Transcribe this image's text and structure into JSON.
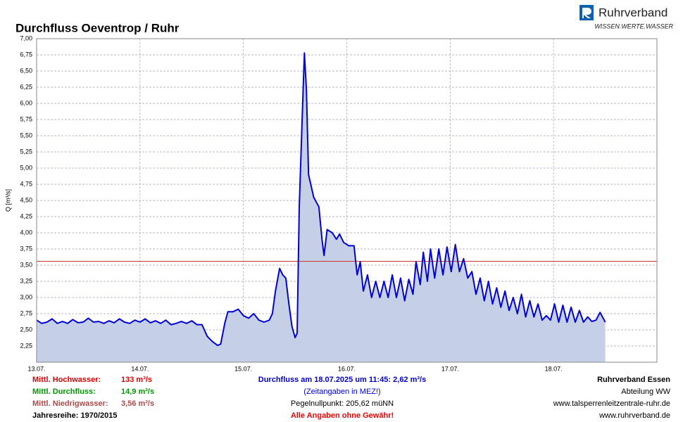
{
  "logo": {
    "name": "Ruhrverband",
    "slogan": "WISSEN.WERTE.WASSER"
  },
  "chart_data": {
    "type": "line",
    "title": "Durchfluss Oeventrop / Ruhr",
    "y_label": "Q [m³/s]",
    "color": "#0000dd",
    "fill_color": "#c5d0e6",
    "grid": true,
    "reference_line": {
      "value": 3.56,
      "color": "#cc3333"
    },
    "xlim": [
      0,
      6
    ],
    "xticks": [
      {
        "value": 0,
        "label": "13.07."
      },
      {
        "value": 1,
        "label": "14.07."
      },
      {
        "value": 2,
        "label": "15.07."
      },
      {
        "value": 3,
        "label": "16.07."
      },
      {
        "value": 4,
        "label": "17.07."
      },
      {
        "value": 5,
        "label": "18.07."
      }
    ],
    "ylim": [
      2,
      7
    ],
    "yticks": [
      {
        "value": 2.25,
        "label": "2,25"
      },
      {
        "value": 2.5,
        "label": "2,50"
      },
      {
        "value": 2.75,
        "label": "2,75"
      },
      {
        "value": 3,
        "label": "3,00"
      },
      {
        "value": 3.25,
        "label": "3,25"
      },
      {
        "value": 3.5,
        "label": "3,50"
      },
      {
        "value": 3.75,
        "label": "3,75"
      },
      {
        "value": 4,
        "label": "4,00"
      },
      {
        "value": 4.25,
        "label": "4,25"
      },
      {
        "value": 4.5,
        "label": "4,50"
      },
      {
        "value": 4.75,
        "label": "4,75"
      },
      {
        "value": 5,
        "label": "5,00"
      },
      {
        "value": 5.25,
        "label": "5,25"
      },
      {
        "value": 5.5,
        "label": "5,50"
      },
      {
        "value": 5.75,
        "label": "5,75"
      },
      {
        "value": 6,
        "label": "6,00"
      },
      {
        "value": 6.25,
        "label": "6,25"
      },
      {
        "value": 6.5,
        "label": "6,50"
      },
      {
        "value": 6.75,
        "label": "6,75"
      },
      {
        "value": 7,
        "label": "7,00"
      }
    ],
    "x": [
      0,
      0.05,
      0.1,
      0.15,
      0.2,
      0.25,
      0.3,
      0.35,
      0.4,
      0.45,
      0.5,
      0.55,
      0.6,
      0.65,
      0.7,
      0.75,
      0.8,
      0.85,
      0.9,
      0.95,
      1.0,
      1.05,
      1.1,
      1.15,
      1.2,
      1.25,
      1.3,
      1.35,
      1.4,
      1.45,
      1.5,
      1.55,
      1.6,
      1.65,
      1.7,
      1.75,
      1.78,
      1.82,
      1.85,
      1.9,
      1.95,
      2.0,
      2.05,
      2.1,
      2.15,
      2.2,
      2.25,
      2.28,
      2.31,
      2.35,
      2.38,
      2.41,
      2.44,
      2.47,
      2.5,
      2.52,
      2.54,
      2.58,
      2.59,
      2.61,
      2.63,
      2.68,
      2.73,
      2.76,
      2.78,
      2.81,
      2.86,
      2.9,
      2.93,
      2.97,
      3.02,
      3.07,
      3.1,
      3.13,
      3.16,
      3.2,
      3.24,
      3.28,
      3.32,
      3.36,
      3.4,
      3.44,
      3.48,
      3.52,
      3.56,
      3.6,
      3.64,
      3.67,
      3.71,
      3.74,
      3.78,
      3.81,
      3.85,
      3.89,
      3.93,
      3.97,
      4.01,
      4.05,
      4.09,
      4.13,
      4.17,
      4.21,
      4.25,
      4.29,
      4.33,
      4.37,
      4.41,
      4.45,
      4.49,
      4.53,
      4.57,
      4.61,
      4.65,
      4.69,
      4.73,
      4.77,
      4.81,
      4.85,
      4.89,
      4.93,
      4.97,
      5.01,
      5.05,
      5.09,
      5.13,
      5.17,
      5.21,
      5.25,
      5.29,
      5.33,
      5.37,
      5.41,
      5.45,
      5.48,
      5.5
    ],
    "values": [
      2.65,
      2.6,
      2.62,
      2.67,
      2.6,
      2.63,
      2.6,
      2.66,
      2.61,
      2.62,
      2.68,
      2.62,
      2.63,
      2.6,
      2.64,
      2.61,
      2.67,
      2.62,
      2.6,
      2.65,
      2.62,
      2.67,
      2.61,
      2.64,
      2.6,
      2.65,
      2.58,
      2.6,
      2.63,
      2.6,
      2.64,
      2.58,
      2.58,
      2.4,
      2.32,
      2.26,
      2.28,
      2.6,
      2.78,
      2.78,
      2.82,
      2.72,
      2.68,
      2.75,
      2.65,
      2.62,
      2.65,
      2.75,
      3.1,
      3.45,
      3.35,
      3.3,
      2.9,
      2.55,
      2.38,
      2.45,
      4.4,
      6.3,
      6.78,
      6.2,
      4.9,
      4.55,
      4.4,
      3.9,
      3.65,
      4.05,
      4.0,
      3.9,
      3.98,
      3.85,
      3.8,
      3.8,
      3.35,
      3.55,
      3.1,
      3.35,
      3.0,
      3.25,
      3.0,
      3.25,
      3.0,
      3.35,
      3.0,
      3.3,
      2.95,
      3.28,
      3.05,
      3.55,
      3.2,
      3.7,
      3.25,
      3.75,
      3.3,
      3.75,
      3.35,
      3.78,
      3.4,
      3.82,
      3.4,
      3.6,
      3.3,
      3.4,
      3.05,
      3.3,
      2.95,
      3.25,
      2.9,
      3.15,
      2.85,
      3.1,
      2.8,
      3.0,
      2.75,
      3.05,
      2.7,
      2.95,
      2.7,
      2.9,
      2.65,
      2.72,
      2.65,
      2.9,
      2.62,
      2.88,
      2.62,
      2.85,
      2.62,
      2.8,
      2.62,
      2.7,
      2.63,
      2.65,
      2.77,
      2.68,
      2.62
    ]
  },
  "footer": {
    "left": [
      {
        "label": "Mittl. Hochwasser:",
        "value": "133 m³/s",
        "color": "#dd0000"
      },
      {
        "label": "Mittl. Durchfluss:",
        "value": "14,9 m³/s",
        "color": "#009900"
      },
      {
        "label": "Mittl. Niedrigwasser:",
        "value": "3,56 m³/s",
        "color": "#b04848"
      },
      {
        "label": "Jahresreihe: 1970/2015",
        "color": "#000000"
      }
    ],
    "center": [
      {
        "text": "Durchfluss am 18.07.2025 um 11:45: 2,62 m³/s",
        "color": "#0000cc",
        "bold": true
      },
      {
        "text": "(Zeitangaben in MEZ!)",
        "color": "#0000cc",
        "bold": false
      },
      {
        "text": "Pegelnullpunkt: 205,62 müNN",
        "color": "#000000",
        "bold": false
      },
      {
        "text": "Alle Angaben ohne Gewähr!",
        "color": "#ee0000",
        "bold": true
      }
    ],
    "right": [
      {
        "text": "Ruhrverband Essen",
        "bold": true
      },
      {
        "text": "Abteilung WW",
        "bold": false
      },
      {
        "text": "www.talsperrenleitzentrale-ruhr.de",
        "bold": false
      },
      {
        "text": "www.ruhrverband.de",
        "bold": false
      }
    ]
  }
}
